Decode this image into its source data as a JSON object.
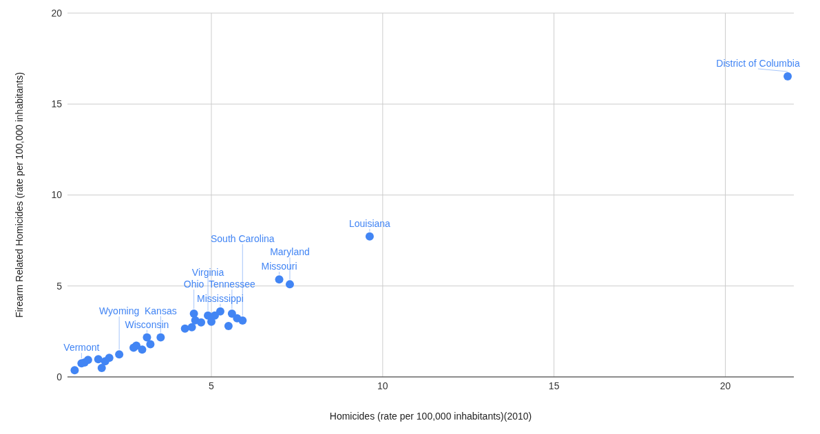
{
  "chart_data": {
    "type": "scatter",
    "xlabel": "Homicides (rate per 100,000 inhabitants)(2010)",
    "ylabel": "Firearm Related Homicides (rate per 100,000 inhabitants)",
    "x": [
      1.01,
      1.21,
      1.3,
      1.4,
      1.7,
      1.8,
      1.9,
      2.02,
      2.31,
      2.73,
      2.81,
      2.98,
      3.12,
      3.22,
      3.52,
      4.23,
      4.43,
      4.49,
      4.53,
      4.7,
      4.9,
      5.0,
      5.1,
      5.26,
      5.5,
      5.6,
      5.75,
      5.91,
      6.98,
      7.29,
      9.62,
      21.82
    ],
    "values": [
      0.37,
      0.75,
      0.79,
      0.94,
      0.97,
      0.49,
      0.86,
      1.05,
      1.24,
      1.61,
      1.72,
      1.5,
      2.17,
      1.8,
      2.17,
      2.66,
      2.73,
      3.48,
      3.11,
      3.0,
      3.37,
      3.03,
      3.37,
      3.6,
      2.8,
      3.48,
      3.22,
      3.1,
      5.36,
      5.09,
      7.72,
      16.52
    ],
    "color": "#4285f4",
    "marker": "circle",
    "xlim": [
      0.8,
      22
    ],
    "xticks": [
      5,
      10,
      15,
      20
    ],
    "ylim": [
      0,
      20
    ],
    "yticks": [
      0,
      5,
      10,
      15,
      20
    ],
    "grid": true,
    "annotations": [
      {
        "text": "Vermont",
        "x": 1.21,
        "y": 0.75
      },
      {
        "text": "Wyoming",
        "x": 2.31,
        "y": 1.24
      },
      {
        "text": "Wisconsin",
        "x": 3.12,
        "y": 2.17
      },
      {
        "text": "Kansas",
        "x": 3.52,
        "y": 2.17
      },
      {
        "text": "Ohio",
        "x": 4.49,
        "y": 3.48
      },
      {
        "text": "Virginia",
        "x": 4.9,
        "y": 3.37
      },
      {
        "text": "Tennessee",
        "x": 5.6,
        "y": 3.48
      },
      {
        "text": "Mississippi",
        "x": 5.26,
        "y": 3.6
      },
      {
        "text": "South Carolina",
        "x": 5.91,
        "y": 3.1
      },
      {
        "text": "Missouri",
        "x": 6.98,
        "y": 5.36
      },
      {
        "text": "Maryland",
        "x": 7.29,
        "y": 5.09
      },
      {
        "text": "Louisiana",
        "x": 9.62,
        "y": 7.72
      },
      {
        "text": "District of Columbia",
        "x": 21.82,
        "y": 16.52
      }
    ]
  }
}
